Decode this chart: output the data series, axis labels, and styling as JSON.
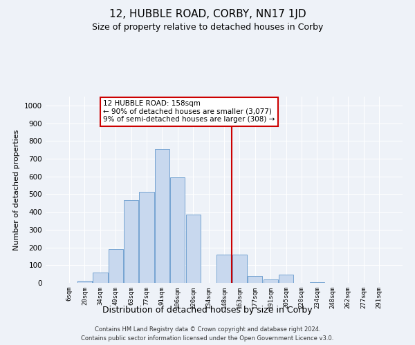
{
  "title": "12, HUBBLE ROAD, CORBY, NN17 1JD",
  "subtitle": "Size of property relative to detached houses in Corby",
  "xlabel": "Distribution of detached houses by size in Corby",
  "ylabel": "Number of detached properties",
  "bar_labels": [
    "6sqm",
    "20sqm",
    "34sqm",
    "49sqm",
    "63sqm",
    "77sqm",
    "91sqm",
    "106sqm",
    "120sqm",
    "134sqm",
    "148sqm",
    "163sqm",
    "177sqm",
    "191sqm",
    "205sqm",
    "220sqm",
    "234sqm",
    "248sqm",
    "262sqm",
    "277sqm",
    "291sqm"
  ],
  "bar_values": [
    0,
    10,
    60,
    190,
    465,
    515,
    755,
    595,
    385,
    0,
    160,
    160,
    40,
    20,
    45,
    0,
    5,
    0,
    0,
    0,
    0
  ],
  "bar_color": "#c8d8ee",
  "bar_edge_color": "#6699cc",
  "vline_color": "#cc0000",
  "annotation_title": "12 HUBBLE ROAD: 158sqm",
  "annotation_line1": "← 90% of detached houses are smaller (3,077)",
  "annotation_line2": "9% of semi-detached houses are larger (308) →",
  "annotation_box_color": "#cc0000",
  "ylim": [
    0,
    1050
  ],
  "yticks": [
    0,
    100,
    200,
    300,
    400,
    500,
    600,
    700,
    800,
    900,
    1000
  ],
  "footer1": "Contains HM Land Registry data © Crown copyright and database right 2024.",
  "footer2": "Contains public sector information licensed under the Open Government Licence v3.0.",
  "background_color": "#eef2f8",
  "plot_bg_color": "#eef2f8",
  "grid_color": "#ffffff",
  "title_fontsize": 11,
  "subtitle_fontsize": 9,
  "ylabel_fontsize": 8,
  "xlabel_fontsize": 9
}
